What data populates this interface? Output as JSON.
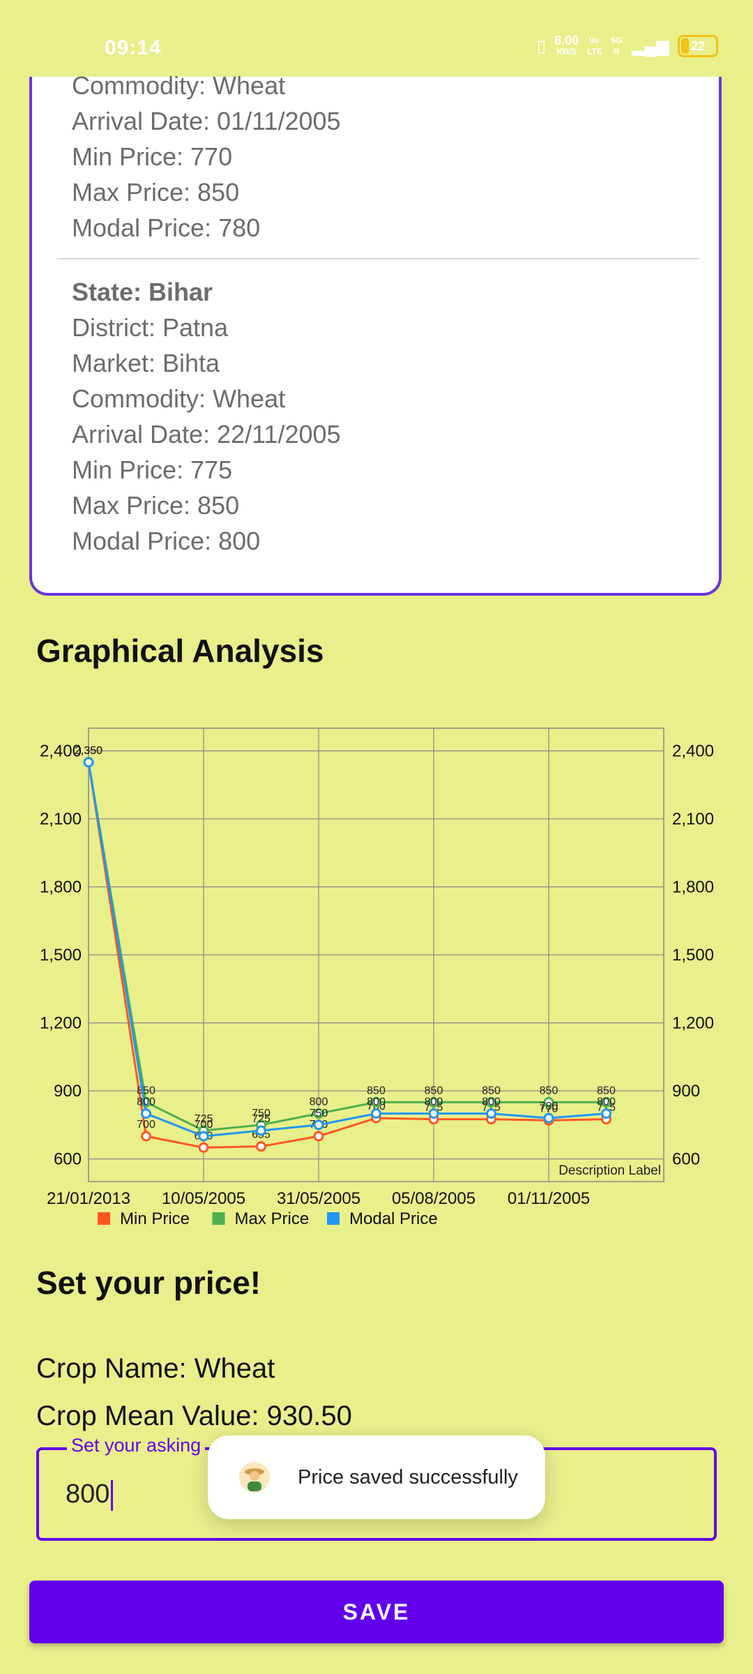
{
  "status_bar": {
    "time": "09:14",
    "net_speed": "8.00",
    "net_unit": "KB/S",
    "volte": "Vo LTE",
    "network": "5G R",
    "battery": "22"
  },
  "card": {
    "first": {
      "commodity": "Commodity: Wheat",
      "arrival": "Arrival Date: 01/11/2005",
      "min": "Min Price: 770",
      "max": "Max Price: 850",
      "modal": "Modal Price: 780"
    },
    "second": {
      "state": "State: Bihar",
      "district": "District: Patna",
      "market": "Market: Bihta",
      "commodity": "Commodity: Wheat",
      "arrival": "Arrival Date: 22/11/2005",
      "min": "Min Price: 775",
      "max": "Max Price: 850",
      "modal": "Modal Price: 800"
    }
  },
  "graph_title": "Graphical Analysis",
  "chart_data": {
    "type": "line",
    "categories": [
      "21/01/2013",
      "",
      "10/05/2005",
      "",
      "31/05/2005",
      "",
      "05/08/2005",
      "",
      "01/11/2005",
      ""
    ],
    "x_tick_labels": [
      "21/01/2013",
      "10/05/2005",
      "31/05/2005",
      "05/08/2005",
      "01/11/2005"
    ],
    "ylim": [
      500,
      2500
    ],
    "y_ticks": [
      "600",
      "900",
      "1,200",
      "1,500",
      "1,800",
      "2,100",
      "2,400"
    ],
    "series": [
      {
        "name": "Min Price",
        "color": "#ff5722",
        "values": [
          2350,
          700,
          650,
          655,
          700,
          780,
          775,
          775,
          770,
          775
        ]
      },
      {
        "name": "Max Price",
        "color": "#4caf50",
        "values": [
          2350,
          850,
          725,
          750,
          800,
          850,
          850,
          850,
          850,
          850
        ]
      },
      {
        "name": "Modal Price",
        "color": "#2196f3",
        "values": [
          2350,
          800,
          700,
          725,
          750,
          800,
          800,
          800,
          780,
          800
        ]
      }
    ],
    "description": "Description Label",
    "grid": true,
    "legend_position": "bottom-left"
  },
  "set_price_title": "Set your price!",
  "crop_name": "Crop Name: Wheat",
  "crop_mean": "Crop Mean Value: 930.50",
  "price_field": {
    "label": "Set your asking",
    "value": "800"
  },
  "toast": {
    "text": "Price saved successfully"
  },
  "save_label": "SAVE"
}
